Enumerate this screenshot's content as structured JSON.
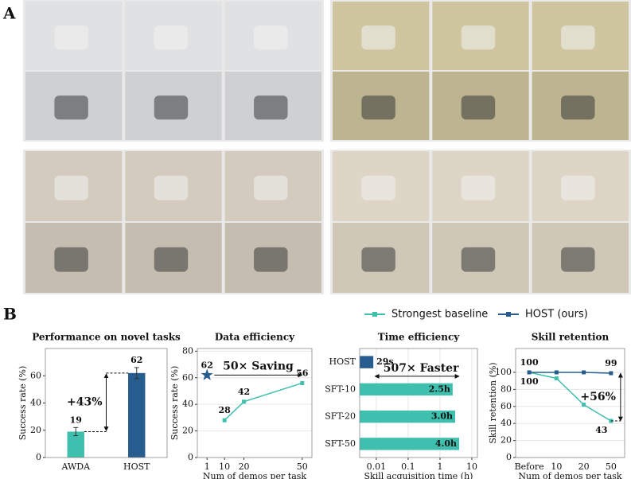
{
  "panel_labels": [
    "A",
    "B"
  ],
  "legend": [
    {
      "name": "Strongest baseline",
      "color": "#3fbfad"
    },
    {
      "name": "HOST (ours)",
      "color": "#275d8e"
    }
  ],
  "chart_data": [
    {
      "type": "bar",
      "title": "Performance on novel tasks",
      "ylabel": "Success rate (%)",
      "categories": [
        "AWDA",
        "HOST"
      ],
      "values": [
        19,
        62
      ],
      "errors": [
        3,
        4
      ],
      "colors": [
        "#3fbfad",
        "#275d8e"
      ],
      "ylim": [
        0,
        80
      ],
      "yticks": [
        0,
        20,
        40,
        60
      ],
      "annotations": [
        "+43%"
      ]
    },
    {
      "type": "line",
      "title": "Data efficiency",
      "xlabel": "Num of demos per task",
      "ylabel": "Success rate (%)",
      "xlim": [
        -4,
        55
      ],
      "ylim": [
        0,
        82
      ],
      "xticks": [
        1,
        10,
        20,
        50
      ],
      "yticks": [
        0,
        20,
        40,
        60,
        80
      ],
      "grid": true,
      "series": [
        {
          "color": "#3fbfad",
          "marker": "square",
          "x": [
            10,
            20,
            50
          ],
          "values": [
            28,
            42,
            56
          ]
        },
        {
          "color": "#275d8e",
          "marker": "star",
          "x": [
            1
          ],
          "values": [
            62
          ]
        }
      ],
      "annotations": [
        "50× Saving"
      ]
    },
    {
      "type": "barh",
      "title": "Time efficiency",
      "xlabel": "Skill acquisition time (h)",
      "xscale": "log",
      "xlim": [
        0.003,
        15
      ],
      "xticks": [
        0.01,
        0.1,
        1,
        10
      ],
      "grid": true,
      "categories": [
        "HOST",
        "SFT-10",
        "SFT-20",
        "SFT-50"
      ],
      "values": [
        0.008056,
        2.5,
        3.0,
        4.0
      ],
      "value_labels": [
        "29s",
        "2.5h",
        "3.0h",
        "4.0h"
      ],
      "colors": [
        "#275d8e",
        "#3fbfad",
        "#3fbfad",
        "#3fbfad"
      ],
      "annotations": [
        "507× Faster"
      ]
    },
    {
      "type": "line",
      "title": "Skill retention",
      "xlabel": "Num of demos per task",
      "ylabel": "Skill retention (%)",
      "categories": [
        "Before",
        "10",
        "20",
        "50"
      ],
      "ylim": [
        0,
        128
      ],
      "yticks": [
        0,
        20,
        40,
        60,
        80,
        100
      ],
      "grid": true,
      "series": [
        {
          "color": "#3fbfad",
          "marker": "square",
          "values": [
            100,
            93,
            62,
            43
          ]
        },
        {
          "color": "#275d8e",
          "marker": "square",
          "values": [
            100,
            100,
            100,
            99
          ]
        }
      ],
      "annotations": [
        "+56%"
      ]
    }
  ]
}
